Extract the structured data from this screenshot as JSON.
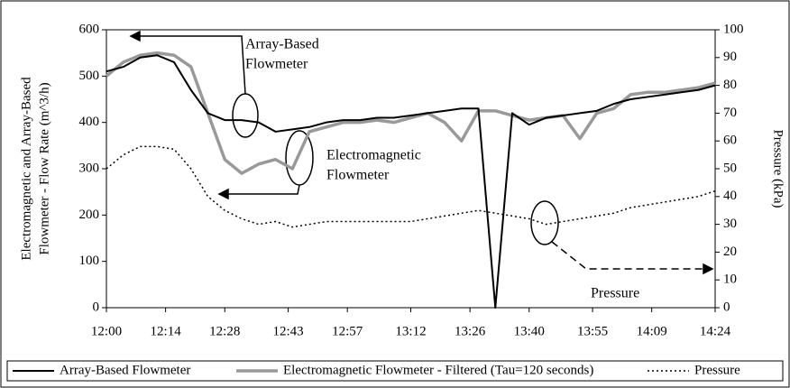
{
  "chart_data": {
    "type": "line",
    "ylabel": [
      "Electromagnetic and Array-Based",
      "Flowmeter - Flow Rate (m^3/h)"
    ],
    "y2label": "Pressure (kPa)",
    "x": [
      "12:00",
      "12:04",
      "12:08",
      "12:12",
      "12:16",
      "12:20",
      "12:24",
      "12:28",
      "12:32",
      "12:36",
      "12:40",
      "12:44",
      "12:48",
      "12:52",
      "12:56",
      "13:00",
      "13:04",
      "13:08",
      "13:12",
      "13:16",
      "13:20",
      "13:24",
      "13:28",
      "13:32",
      "13:36",
      "13:40",
      "13:44",
      "13:48",
      "13:52",
      "13:56",
      "14:00",
      "14:04",
      "14:08",
      "14:12",
      "14:16",
      "14:20",
      "14:24"
    ],
    "xlim": [
      "12:00",
      "14:24"
    ],
    "xticks": [
      "12:00",
      "12:14",
      "12:28",
      "12:43",
      "12:57",
      "13:12",
      "13:26",
      "13:40",
      "13:55",
      "14:09",
      "14:24"
    ],
    "ylim": [
      0,
      600
    ],
    "yticks": [
      0,
      100,
      200,
      300,
      400,
      500,
      600
    ],
    "y2lim": [
      0,
      100
    ],
    "y2ticks": [
      0,
      10,
      20,
      30,
      40,
      50,
      60,
      70,
      80,
      90,
      100
    ],
    "series": [
      {
        "name": "Array-Based Flowmeter",
        "color": "#000000",
        "line_style": "solid",
        "values": [
          510,
          520,
          540,
          545,
          530,
          470,
          420,
          405,
          405,
          400,
          380,
          385,
          390,
          400,
          405,
          405,
          410,
          410,
          415,
          420,
          425,
          430,
          430,
          0,
          420,
          395,
          410,
          415,
          420,
          425,
          440,
          450,
          455,
          460,
          465,
          470,
          480
        ]
      },
      {
        "name": "Electromagnetic Flowmeter - Filtered (Tau=120 seconds)",
        "color": "#999999",
        "line_style": "thick",
        "values": [
          500,
          530,
          545,
          550,
          545,
          520,
          420,
          320,
          290,
          310,
          320,
          300,
          380,
          390,
          400,
          400,
          405,
          400,
          410,
          420,
          400,
          360,
          425,
          425,
          415,
          405,
          410,
          415,
          365,
          420,
          430,
          460,
          465,
          465,
          470,
          475,
          485
        ]
      },
      {
        "name": "Pressure",
        "color": "#000000",
        "line_style": "dotted",
        "axis": "y2",
        "values": [
          50,
          55,
          58,
          58,
          57,
          50,
          40,
          35,
          32,
          30,
          31,
          29,
          30,
          31,
          31,
          31,
          31,
          31,
          31,
          32,
          33,
          34,
          35,
          34,
          33,
          32,
          30,
          31,
          32,
          33,
          34,
          36,
          37,
          38,
          39,
          40,
          42
        ]
      }
    ],
    "annotations": [
      [
        "Array-Based",
        "Flowmeter"
      ],
      [
        "Electromagnetic",
        "Flowmeter"
      ],
      [
        "Pressure"
      ]
    ]
  }
}
